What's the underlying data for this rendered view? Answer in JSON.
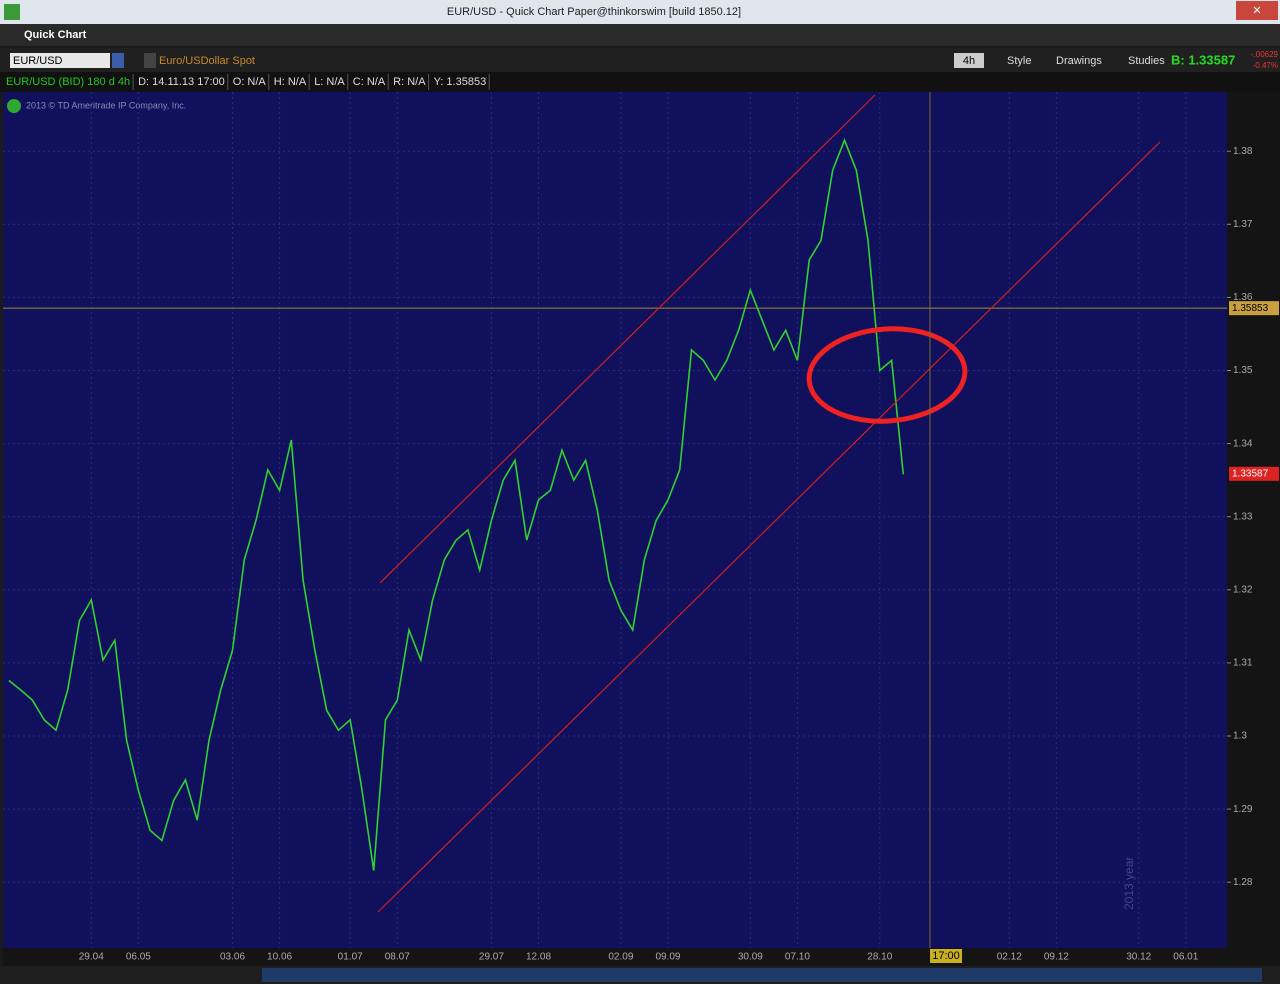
{
  "window": {
    "title": "EUR/USD - Quick Chart Paper@thinkorswim [build 1850.12]"
  },
  "header": {
    "title": "Quick Chart"
  },
  "toolbar": {
    "symbol": "EUR/USD",
    "description": "Euro/USDollar Spot",
    "aggregation": "4h",
    "style": "Style",
    "drawings": "Drawings",
    "studies": "Studies",
    "bid": "B: 1.33587",
    "change": "-.00629",
    "change_percent": "-0.47%"
  },
  "info_bar": [
    "EUR/USD (BID) 180 d 4h",
    "D: 14.11.13 17:00",
    "O: N/A",
    "H: N/A",
    "L: N/A",
    "C: N/A",
    "R: N/A",
    "Y: 1.35853"
  ],
  "copyright": "2013 © TD Ameritrade IP Company, Inc.",
  "year_label": "2013 year",
  "cursor_time": "17:00",
  "chart_data": {
    "type": "line",
    "color": "#2fd22f",
    "categories": [
      null,
      null,
      null,
      null,
      null,
      null,
      null,
      "29.04",
      null,
      null,
      null,
      "06.05",
      null,
      null,
      null,
      null,
      null,
      null,
      null,
      "03.06",
      null,
      null,
      null,
      "10.06",
      null,
      null,
      null,
      null,
      null,
      "01.07",
      null,
      null,
      null,
      "08.07",
      null,
      null,
      null,
      null,
      null,
      null,
      null,
      "29.07",
      null,
      null,
      null,
      "12.08",
      null,
      null,
      null,
      null,
      null,
      null,
      "02.09",
      null,
      null,
      null,
      "09.09",
      null,
      null,
      null,
      null,
      null,
      null,
      "30.09",
      null,
      null,
      null,
      "07.10",
      null,
      null,
      null,
      null,
      null,
      null,
      "28.10",
      null,
      null,
      null,
      null,
      null,
      null,
      null,
      null,
      null,
      null,
      "02.12",
      null,
      null,
      null,
      "09.12",
      null,
      null,
      null,
      null,
      null,
      null,
      "30.12",
      null,
      null,
      null,
      "06.01",
      null,
      null,
      null
    ],
    "values": [
      1.3076,
      1.3063,
      1.3049,
      1.3022,
      1.3008,
      1.3063,
      1.3158,
      1.3186,
      1.3104,
      1.3131,
      1.2994,
      1.2926,
      1.2871,
      1.2857,
      1.2912,
      1.294,
      1.2885,
      1.2994,
      1.3063,
      1.3117,
      1.3241,
      1.3295,
      1.3364,
      1.3336,
      1.3405,
      1.3213,
      1.3117,
      1.3035,
      1.3008,
      1.3022,
      1.2926,
      1.2816,
      1.3022,
      1.3049,
      1.3145,
      1.3104,
      1.3186,
      1.3241,
      1.3268,
      1.3282,
      1.3227,
      1.3295,
      1.335,
      1.3377,
      1.3268,
      1.3323,
      1.3336,
      1.3391,
      1.335,
      1.3377,
      1.3309,
      1.3213,
      1.3172,
      1.3145,
      1.3241,
      1.3295,
      1.3323,
      1.3364,
      1.3528,
      1.3514,
      1.3487,
      1.3514,
      1.3555,
      1.361,
      1.3569,
      1.3528,
      1.3555,
      1.3514,
      1.3651,
      1.3678,
      1.3774,
      1.3815,
      1.3774,
      1.3678,
      1.35,
      1.3514,
      1.3358,
      null,
      null,
      null,
      null,
      null,
      null,
      null,
      null,
      null,
      null,
      null,
      null,
      null,
      null,
      null,
      null,
      null,
      null,
      null,
      null,
      null,
      null,
      null,
      null,
      null,
      null,
      null
    ],
    "ylim": [
      1.271,
      1.3881
    ],
    "yticks": [
      1.28,
      1.29,
      1.3,
      1.31,
      1.32,
      1.33,
      1.34,
      1.35,
      1.36,
      1.37,
      1.38
    ],
    "price_line": 1.35853,
    "last_price": 1.33587,
    "grid": true
  }
}
